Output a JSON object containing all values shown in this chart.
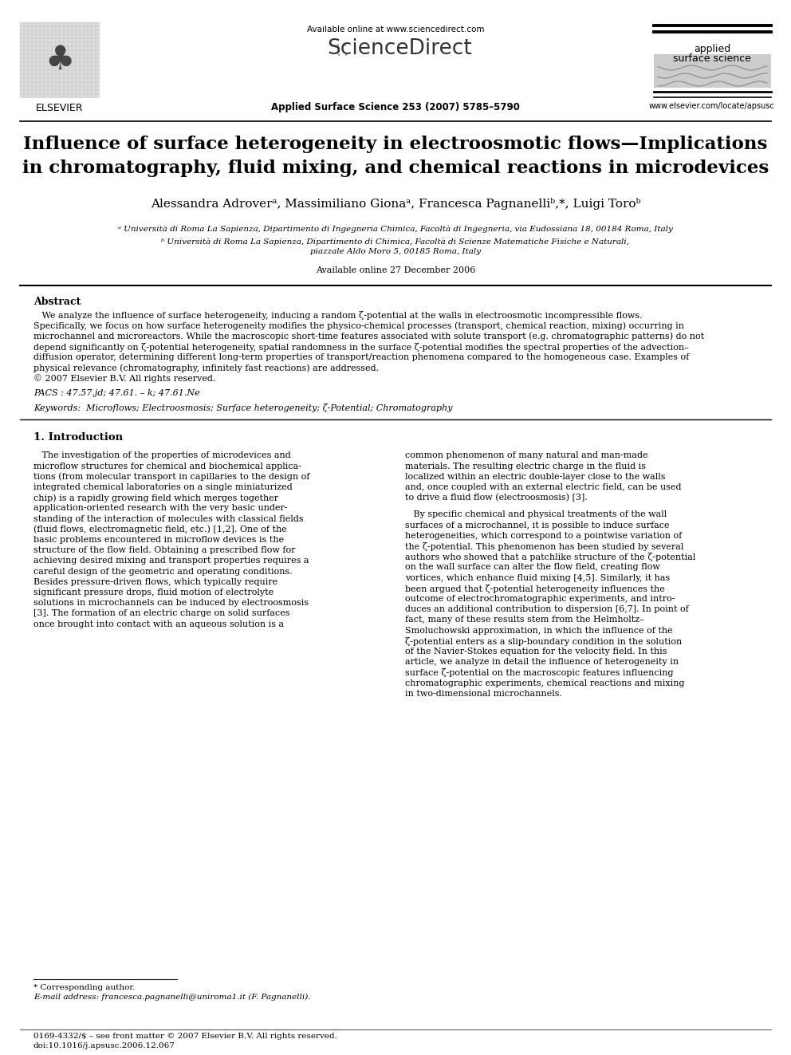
{
  "bg_color": "#ffffff",
  "title_line1": "Influence of surface heterogeneity in electroosmotic flows—Implications",
  "title_line2": "in chromatography, fluid mixing, and chemical reactions in microdevices",
  "affil_a": "ᵃ Università di Roma La Sapienza, Dipartimento di Ingegneria Chimica, Facoltà di Ingegneria, via Eudossiana 18, 00184 Roma, Italy",
  "affil_b_line1": "ᵇ Università di Roma La Sapienza, Dipartimento di Chimica, Facoltà di Scienze Matematiche Fisiche e Naturali,",
  "affil_b_line2": "piazzale Aldo Moro 5, 00185 Roma, Italy",
  "available_online": "Available online 27 December 2006",
  "journal_info": "Applied Surface Science 253 (2007) 5785–5790",
  "available_online_header": "Available online at www.sciencedirect.com",
  "sciencedirect_text": "ScienceDirect",
  "journal_name_right_1": "applied",
  "journal_name_right_2": "surface science",
  "url_right": "www.elsevier.com/locate/apsusc",
  "elsevier_text": "ELSEVIER",
  "abstract_heading": "Abstract",
  "pacs": "PACS : 47.57.jd; 47.61. – k; 47.61.Ne",
  "keywords": "Keywords:  Microflows; Electroosmosis; Surface heterogeneity; ζ-Potential; Chromatography",
  "section1_heading": "1. Introduction",
  "footnote_corresponding": "* Corresponding author.",
  "footnote_email": "E-mail address: francesca.pagnanelli@uniroma1.it (F. Pagnanelli).",
  "footer_issn": "0169-4332/$ – see front matter © 2007 Elsevier B.V. All rights reserved.",
  "footer_doi": "doi:10.1016/j.apsusc.2006.12.067",
  "abstract_lines": [
    "   We analyze the influence of surface heterogeneity, inducing a random ζ-potential at the walls in electroosmotic incompressible flows.",
    "Specifically, we focus on how surface heterogeneity modifies the physico-chemical processes (transport, chemical reaction, mixing) occurring in",
    "microchannel and microreactors. While the macroscopic short-time features associated with solute transport (e.g. chromatographic patterns) do not",
    "depend significantly on ζ-potential heterogeneity, spatial randomness in the surface ζ-potential modifies the spectral properties of the advection–",
    "diffusion operator, determining different long-term properties of transport/reaction phenomena compared to the homogeneous case. Examples of",
    "physical relevance (chromatography, infinitely fast reactions) are addressed.",
    "© 2007 Elsevier B.V. All rights reserved."
  ],
  "col1_lines": [
    "   The investigation of the properties of microdevices and",
    "microflow structures for chemical and biochemical applica-",
    "tions (from molecular transport in capillaries to the design of",
    "integrated chemical laboratories on a single miniaturized",
    "chip) is a rapidly growing field which merges together",
    "application-oriented research with the very basic under-",
    "standing of the interaction of molecules with classical fields",
    "(fluid flows, electromagnetic field, etc.) [1,2]. One of the",
    "basic problems encountered in microflow devices is the",
    "structure of the flow field. Obtaining a prescribed flow for",
    "achieving desired mixing and transport properties requires a",
    "careful design of the geometric and operating conditions.",
    "Besides pressure-driven flows, which typically require",
    "significant pressure drops, fluid motion of electrolyte",
    "solutions in microchannels can be induced by electroosmosis",
    "[3]. The formation of an electric charge on solid surfaces",
    "once brought into contact with an aqueous solution is a"
  ],
  "col2_para1_lines": [
    "common phenomenon of many natural and man-made",
    "materials. The resulting electric charge in the fluid is",
    "localized within an electric double-layer close to the walls",
    "and, once coupled with an external electric field, can be used",
    "to drive a fluid flow (electroosmosis) [3]."
  ],
  "col2_para2_lines": [
    "   By specific chemical and physical treatments of the wall",
    "surfaces of a microchannel, it is possible to induce surface",
    "heterogeneities, which correspond to a pointwise variation of",
    "the ζ-potential. This phenomenon has been studied by several",
    "authors who showed that a patchlike structure of the ζ-potential",
    "on the wall surface can alter the flow field, creating flow",
    "vortices, which enhance fluid mixing [4,5]. Similarly, it has",
    "been argued that ζ-potential heterogeneity influences the",
    "outcome of electrochromatographic experiments, and intro-",
    "duces an additional contribution to dispersion [6,7]. In point of",
    "fact, many of these results stem from the Helmholtz–",
    "Smoluchowski approximation, in which the influence of the",
    "ζ-potential enters as a slip-boundary condition in the solution",
    "of the Navier-Stokes equation for the velocity field. In this",
    "article, we analyze in detail the influence of heterogeneity in",
    "surface ζ-potential on the macroscopic features influencing",
    "chromatographic experiments, chemical reactions and mixing",
    "in two-dimensional microchannels."
  ],
  "authors_str": "Alessandra Adroverᵃ, Massimiliano Gionaᵃ, Francesca Pagnanelliᵇ,*, Luigi Toroᵇ"
}
